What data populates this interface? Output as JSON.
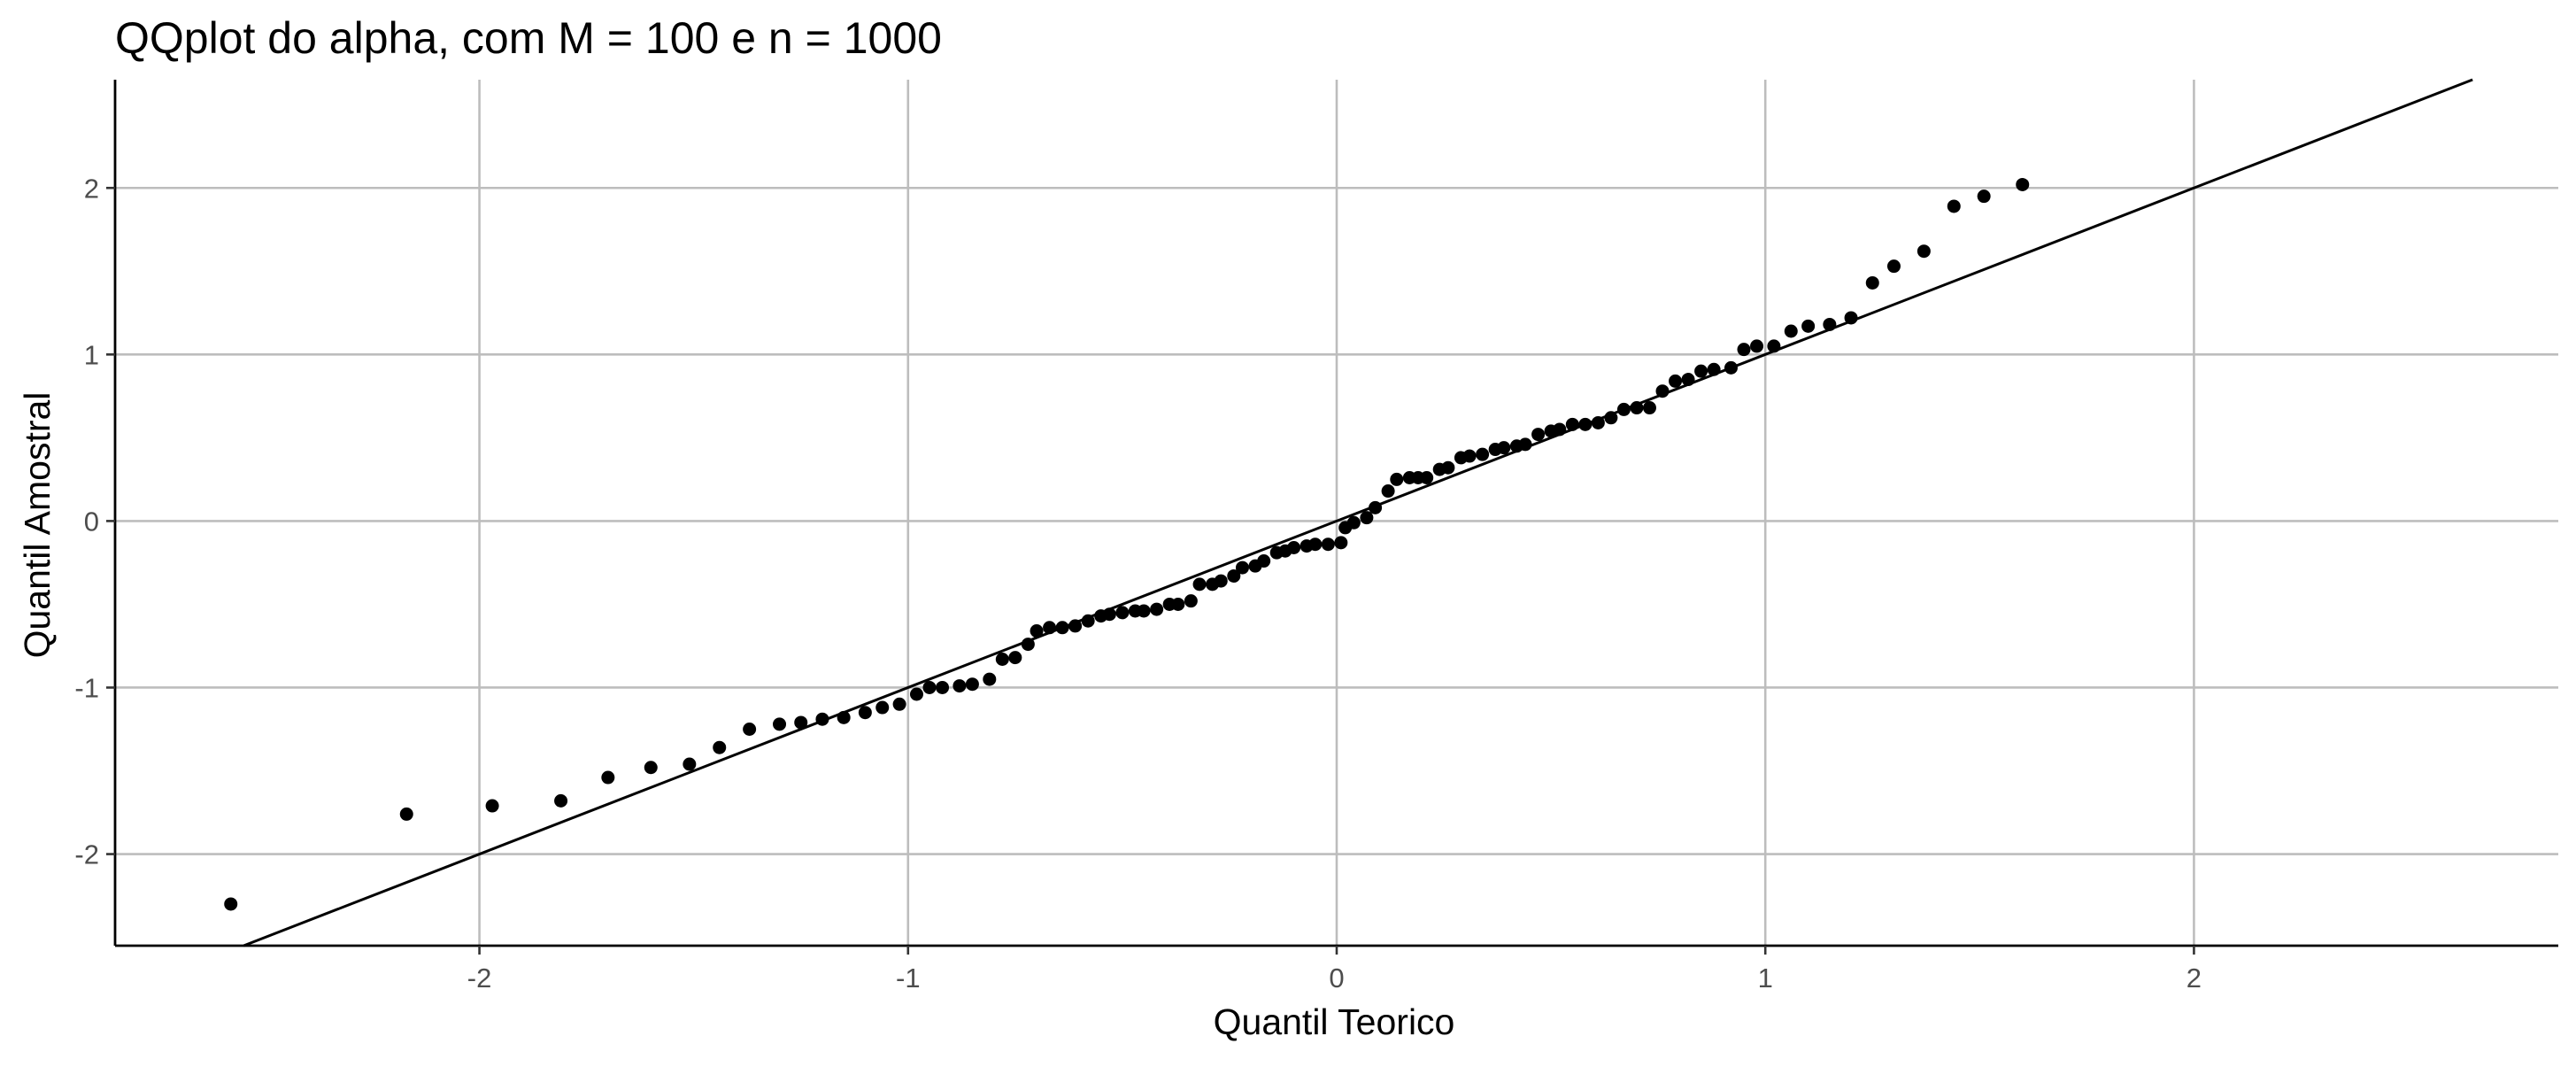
{
  "chart_data": {
    "type": "scatter",
    "title": "QQplot do alpha, com M = 100 e n = 1000",
    "xlabel": "Quantil Teorico",
    "ylabel": "Quantil Amostral",
    "xlim": [
      -2.85,
      2.85
    ],
    "ylim": [
      -2.55,
      2.65
    ],
    "xticks": [
      -2,
      -1,
      0,
      1,
      2
    ],
    "yticks": [
      -2,
      -1,
      0,
      1,
      2
    ],
    "xtick_labels": [
      "-2",
      "-1",
      "0",
      "1",
      "2"
    ],
    "ytick_labels": [
      "-2",
      "-1",
      "0",
      "1",
      "2"
    ],
    "grid": true,
    "legend": "none",
    "reference_line": {
      "slope": 1,
      "intercept": 0
    },
    "series": [
      {
        "points": [
          [
            -2.58,
            -2.3
          ],
          [
            -2.17,
            -1.76
          ],
          [
            -1.97,
            -1.71
          ],
          [
            -1.81,
            -1.68
          ],
          [
            -1.7,
            -1.54
          ],
          [
            -1.6,
            -1.48
          ],
          [
            -1.51,
            -1.46
          ],
          [
            -1.44,
            -1.36
          ],
          [
            -1.37,
            -1.25
          ],
          [
            -1.3,
            -1.22
          ],
          [
            -1.25,
            -1.21
          ],
          [
            -1.2,
            -1.19
          ],
          [
            -1.15,
            -1.18
          ],
          [
            -1.1,
            -1.15
          ],
          [
            -1.06,
            -1.12
          ],
          [
            -1.02,
            -1.1
          ],
          [
            -0.98,
            -1.04
          ],
          [
            -0.95,
            -1.0
          ],
          [
            -0.92,
            -1.0
          ],
          [
            -0.88,
            -0.99
          ],
          [
            -0.85,
            -0.98
          ],
          [
            -0.81,
            -0.95
          ],
          [
            -0.78,
            -0.83
          ],
          [
            -0.75,
            -0.82
          ],
          [
            -0.72,
            -0.74
          ],
          [
            -0.7,
            -0.66
          ],
          [
            -0.67,
            -0.64
          ],
          [
            -0.64,
            -0.64
          ],
          [
            -0.61,
            -0.63
          ],
          [
            -0.58,
            -0.6
          ],
          [
            -0.55,
            -0.57
          ],
          [
            -0.53,
            -0.56
          ],
          [
            -0.5,
            -0.55
          ],
          [
            -0.47,
            -0.54
          ],
          [
            -0.45,
            -0.54
          ],
          [
            -0.42,
            -0.53
          ],
          [
            -0.39,
            -0.5
          ],
          [
            -0.37,
            -0.5
          ],
          [
            -0.34,
            -0.48
          ],
          [
            -0.32,
            -0.38
          ],
          [
            -0.29,
            -0.38
          ],
          [
            -0.27,
            -0.36
          ],
          [
            -0.24,
            -0.33
          ],
          [
            -0.22,
            -0.28
          ],
          [
            -0.19,
            -0.27
          ],
          [
            -0.17,
            -0.24
          ],
          [
            -0.14,
            -0.19
          ],
          [
            -0.12,
            -0.18
          ],
          [
            -0.1,
            -0.16
          ],
          [
            -0.07,
            -0.15
          ],
          [
            -0.05,
            -0.14
          ],
          [
            -0.02,
            -0.14
          ],
          [
            0.01,
            -0.13
          ],
          [
            0.02,
            -0.04
          ],
          [
            0.04,
            -0.01
          ],
          [
            0.07,
            0.02
          ],
          [
            0.09,
            0.08
          ],
          [
            0.12,
            0.18
          ],
          [
            0.14,
            0.25
          ],
          [
            0.17,
            0.26
          ],
          [
            0.19,
            0.26
          ],
          [
            0.21,
            0.26
          ],
          [
            0.24,
            0.31
          ],
          [
            0.26,
            0.32
          ],
          [
            0.29,
            0.38
          ],
          [
            0.31,
            0.39
          ],
          [
            0.34,
            0.4
          ],
          [
            0.37,
            0.43
          ],
          [
            0.39,
            0.44
          ],
          [
            0.42,
            0.45
          ],
          [
            0.44,
            0.46
          ],
          [
            0.47,
            0.52
          ],
          [
            0.5,
            0.54
          ],
          [
            0.52,
            0.55
          ],
          [
            0.55,
            0.58
          ],
          [
            0.58,
            0.58
          ],
          [
            0.61,
            0.59
          ],
          [
            0.64,
            0.62
          ],
          [
            0.67,
            0.67
          ],
          [
            0.7,
            0.68
          ],
          [
            0.73,
            0.68
          ],
          [
            0.76,
            0.78
          ],
          [
            0.79,
            0.84
          ],
          [
            0.82,
            0.85
          ],
          [
            0.85,
            0.9
          ],
          [
            0.88,
            0.91
          ],
          [
            0.92,
            0.92
          ],
          [
            0.95,
            1.03
          ],
          [
            0.98,
            1.05
          ],
          [
            1.02,
            1.05
          ],
          [
            1.06,
            1.14
          ],
          [
            1.1,
            1.17
          ],
          [
            1.15,
            1.18
          ],
          [
            1.2,
            1.22
          ],
          [
            1.25,
            1.43
          ],
          [
            1.3,
            1.53
          ],
          [
            1.37,
            1.62
          ],
          [
            1.44,
            1.89
          ],
          [
            1.51,
            1.95
          ],
          [
            1.6,
            2.02
          ]
        ]
      }
    ]
  }
}
